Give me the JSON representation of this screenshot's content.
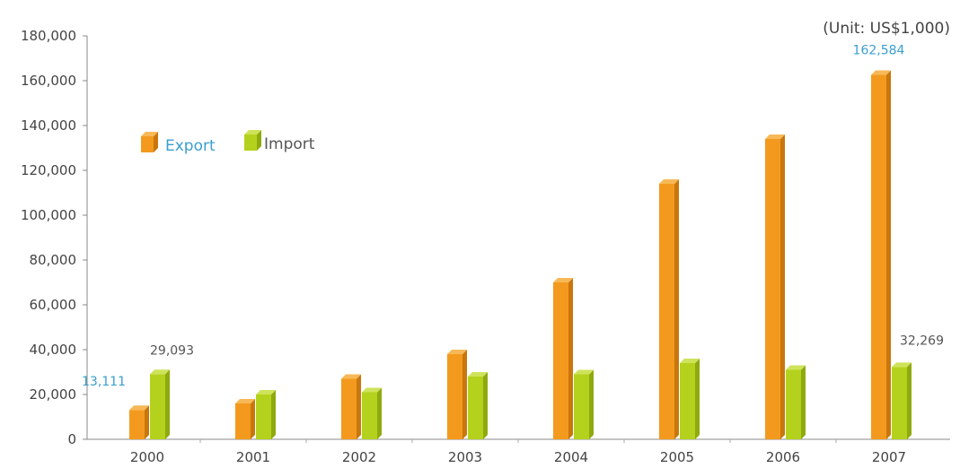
{
  "chart_data": {
    "type": "bar",
    "unit": "(Unit: US$1,000)",
    "categories": [
      "2000",
      "2001",
      "2002",
      "2003",
      "2004",
      "2005",
      "2006",
      "2007"
    ],
    "series": [
      {
        "name": "Export",
        "color": "#f39a1e",
        "shade": "#c9760d",
        "top": "#f7b957",
        "values": [
          13111,
          16000,
          27000,
          38000,
          70000,
          114000,
          134000,
          162584
        ]
      },
      {
        "name": "Import",
        "color": "#b4d21d",
        "shade": "#8eaa0f",
        "top": "#cfe35a",
        "values": [
          29093,
          20000,
          21000,
          28000,
          29000,
          34000,
          31000,
          32269
        ]
      }
    ],
    "data_labels": [
      {
        "series": 0,
        "index": 0,
        "text": "13,111",
        "color": "#3a9fd0"
      },
      {
        "series": 1,
        "index": 0,
        "text": "29,093",
        "color": "#555555"
      },
      {
        "series": 0,
        "index": 7,
        "text": "162,584",
        "color": "#3a9fd0"
      },
      {
        "series": 1,
        "index": 7,
        "text": "32,269",
        "color": "#555555"
      }
    ],
    "ylim": [
      0,
      180000
    ],
    "yticks": [
      0,
      20000,
      40000,
      60000,
      80000,
      100000,
      120000,
      140000,
      160000,
      180000
    ],
    "ytick_labels": [
      "0",
      "20,000",
      "40,000",
      "60,000",
      "80,000",
      "100,000",
      "120,000",
      "140,000",
      "160,000",
      "180,000"
    ],
    "legend": {
      "placement": "top-left",
      "export_color": "#3a9fd0",
      "import_color": "#555555"
    },
    "grid": false
  }
}
